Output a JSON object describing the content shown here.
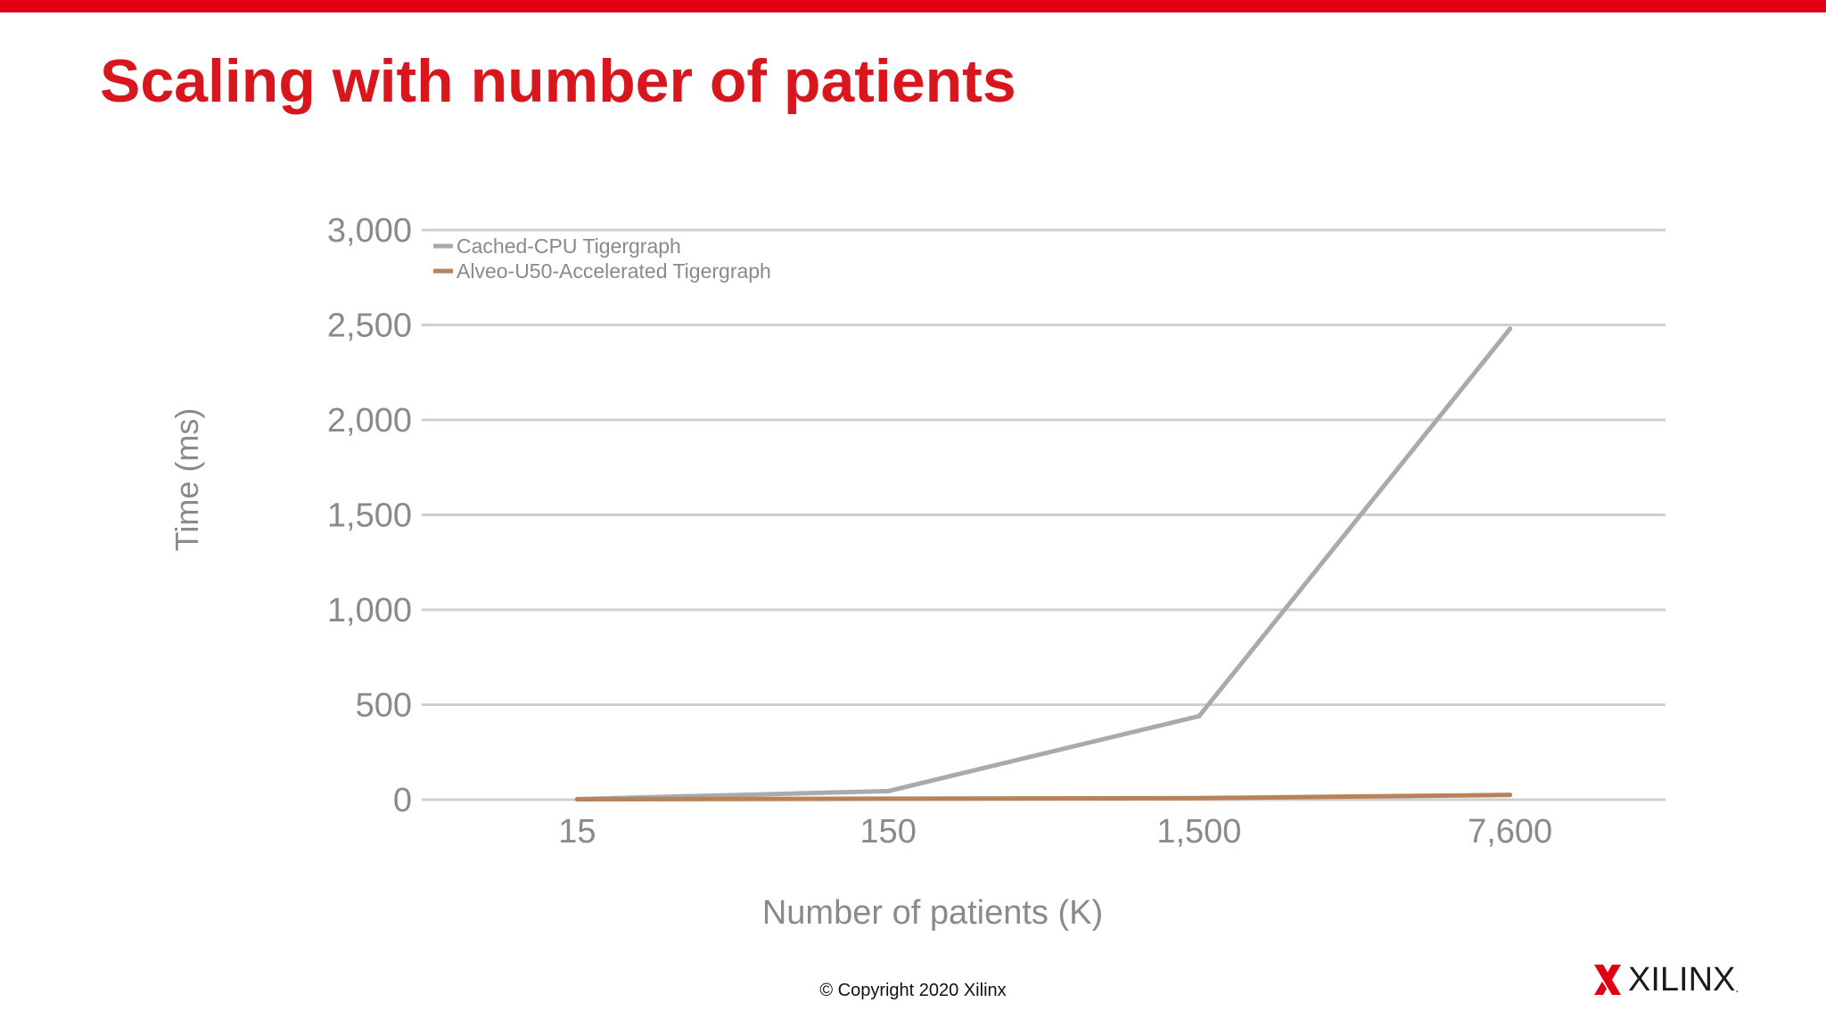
{
  "slide": {
    "title": "Scaling with number of patients",
    "copyright": "© Copyright 2020 Xilinx",
    "logo_text": "XILINX",
    "logo_dot": ".",
    "accent_color": "#e00012",
    "title_color": "#d8161d"
  },
  "chart_data": {
    "type": "line",
    "xlabel": "Number of patients (K)",
    "ylabel": "Time (ms)",
    "categories": [
      "15",
      "150",
      "1,500",
      "7,600"
    ],
    "ylim": [
      0,
      3000
    ],
    "yticks": [
      0,
      500,
      1000,
      1500,
      2000,
      2500,
      3000
    ],
    "ytick_labels": [
      "0",
      "500",
      "1,000",
      "1,500",
      "2,000",
      "2,500",
      "3,000"
    ],
    "grid": "horizontal",
    "legend_position": "top-left",
    "series": [
      {
        "name": "Cached-CPU Tigergraph",
        "color": "#aaaaaa",
        "values": [
          3,
          45,
          440,
          2480
        ]
      },
      {
        "name": "Alveo-U50-Accelerated Tigergraph",
        "color": "#b8825a",
        "values": [
          2,
          5,
          8,
          25
        ]
      }
    ]
  }
}
